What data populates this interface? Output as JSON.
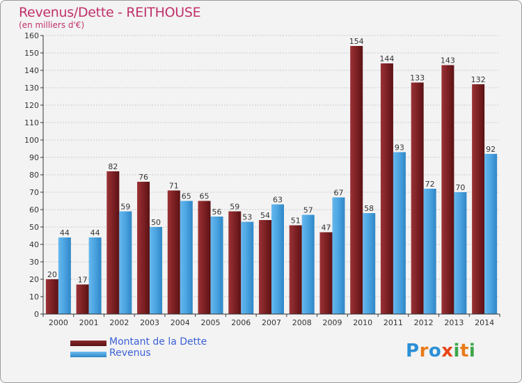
{
  "header": {
    "title": "Revenus/Dette - REITHOUSE",
    "subtitle": "(en milliers d'€)"
  },
  "legend": {
    "items": [
      {
        "label": "Montant de la Dette",
        "color": "#6e1a1a"
      },
      {
        "label": "Revenus",
        "color": "#4aa3e0"
      }
    ]
  },
  "logo": {
    "text": "Proxiti",
    "letters": [
      {
        "ch": "P",
        "color": "#2b8fd6"
      },
      {
        "ch": "r",
        "color": "#e87b1a"
      },
      {
        "ch": "o",
        "color": "#2b8fd6"
      },
      {
        "ch": "x",
        "color": "#e8461a"
      },
      {
        "ch": "i",
        "color": "#3aa64a"
      },
      {
        "ch": "t",
        "color": "#e87b1a"
      },
      {
        "ch": "i",
        "color": "#3aa64a"
      }
    ]
  },
  "chart_data": {
    "type": "bar",
    "title": "Revenus/Dette - REITHOUSE",
    "subtitle": "(en milliers d'€)",
    "categories": [
      "2000",
      "2001",
      "2002",
      "2003",
      "2004",
      "2005",
      "2006",
      "2007",
      "2008",
      "2009",
      "2010",
      "2011",
      "2012",
      "2013",
      "2014"
    ],
    "series": [
      {
        "name": "Montant de la Dette",
        "color": "#7a1f22",
        "values": [
          20,
          17,
          82,
          76,
          71,
          65,
          59,
          54,
          51,
          47,
          154,
          144,
          133,
          143,
          132
        ]
      },
      {
        "name": "Revenus",
        "color": "#4aa3e0",
        "values": [
          44,
          44,
          59,
          50,
          65,
          56,
          53,
          63,
          57,
          67,
          58,
          93,
          72,
          70,
          92
        ]
      }
    ],
    "ylim": [
      0,
      160
    ],
    "yticks": [
      0,
      10,
      20,
      30,
      40,
      50,
      60,
      70,
      80,
      90,
      100,
      110,
      120,
      130,
      140,
      150,
      160
    ],
    "grid": true,
    "legend_position": "bottom-left"
  }
}
